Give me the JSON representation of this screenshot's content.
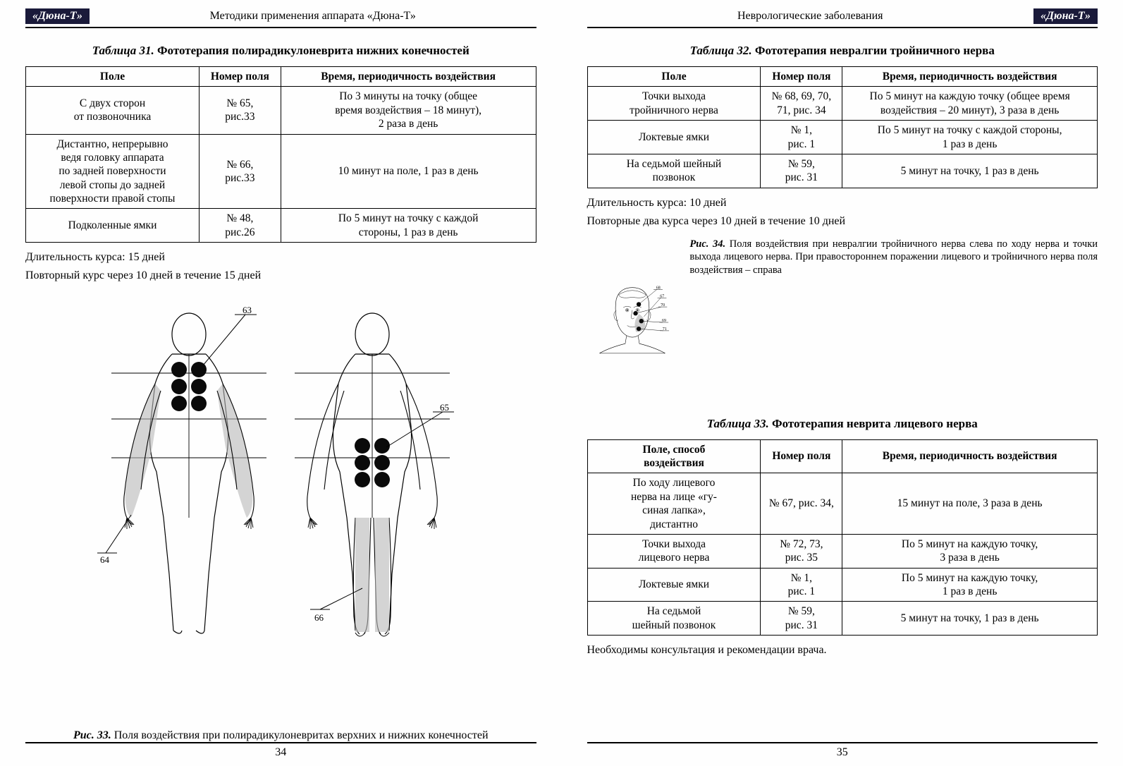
{
  "brand": "«Дюна-Т»",
  "leftPage": {
    "headerText": "Методики применения аппарата «Дюна-Т»",
    "pageNumber": "34",
    "table31": {
      "tno": "Таблица 31.",
      "tname": "Фототерапия полирадикулоневрита нижних конечностей",
      "headers": {
        "c1": "Поле",
        "c2": "Номер поля",
        "c3": "Время, периодичность воздействия"
      },
      "rows": [
        {
          "c1": "С двух сторон\nот позвоночника",
          "c2": "№ 65,\nрис.33",
          "c3": "По 3 минуты на точку (общее\nвремя воздействия – 18 минут),\n2 раза в день"
        },
        {
          "c1": "Дистантно, непрерывно\nведя головку аппарата\nпо задней поверхности\nлевой стопы до задней\nповерхности правой стопы",
          "c2": "№ 66,\nрис.33",
          "c3": "10 минут на поле, 1 раз в день"
        },
        {
          "c1": "Подколенные ямки",
          "c2": "№ 48,\nрис.26",
          "c3": "По 5 минут на точку с каждой\nстороны, 1 раз в день"
        }
      ]
    },
    "notes": [
      "Длительность курса: 15 дней",
      "Повторный курс через 10 дней в течение 15 дней"
    ],
    "fig33": {
      "captionNo": "Рис. 33.",
      "captionText": "Поля воздействия при полирадикулоневритах верхних и нижних конечностей",
      "callouts": {
        "tl": "63",
        "bl": "64",
        "tr": "65",
        "br": "66"
      },
      "dotColor": "#0a0a0a",
      "shadeColor": "#b8b8b8",
      "lineColor": "#000000"
    }
  },
  "rightPage": {
    "headerText": "Неврологические заболевания",
    "pageNumber": "35",
    "table32": {
      "tno": "Таблица 32.",
      "tname": "Фототерапия невралгии тройничного нерва",
      "headers": {
        "c1": "Поле",
        "c2": "Номер поля",
        "c3": "Время, периодичность воздействия"
      },
      "rows": [
        {
          "c1": "Точки выхода\nтройничного нерва",
          "c2": "№ 68, 69, 70,\n71, рис. 34",
          "c3": "По 5 минут на каждую точку (общее время\nвоздействия – 20 минут), 3 раза в день"
        },
        {
          "c1": "Локтевые ямки",
          "c2": "№ 1,\nрис. 1",
          "c3": "По 5 минут на точку с каждой стороны,\n1 раз в день"
        },
        {
          "c1": "На седьмой шейный\nпозвонок",
          "c2": "№ 59,\nрис. 31",
          "c3": "5 минут на точку, 1 раз в день"
        }
      ]
    },
    "notes32": [
      "Длительность курса: 10 дней",
      "Повторные два курса через 10 дней в течение 10 дней"
    ],
    "fig34": {
      "captionNo": "Рис. 34.",
      "captionText": "Поля воздействия при невралгии тройничного нерва слева по ходу нерва и точки выхода лицевого нерва. При правостороннем поражении лицевого и тройничного нерва поля воздействия – справа",
      "callouts": {
        "a": "68",
        "b": "67",
        "c": "70",
        "d": "69",
        "e": "71"
      },
      "dotColor": "#0a0a0a",
      "shadeColor": "#b8b8b8",
      "lineColor": "#000000"
    },
    "table33": {
      "tno": "Таблица 33.",
      "tname": "Фототерапия неврита лицевого нерва",
      "headers": {
        "c1": "Поле, способ\nвоздействия",
        "c2": "Номер поля",
        "c3": "Время, периодичность воздействия"
      },
      "rows": [
        {
          "c1": "По ходу лицевого\nнерва на лице «гу-\nсиная лапка»,\nдистантно",
          "c2": "№ 67, рис. 34,",
          "c3": "15 минут на поле, 3 раза в день"
        },
        {
          "c1": "Точки выхода\nлицевого нерва",
          "c2": "№ 72, 73,\nрис. 35",
          "c3": "По 5 минут на каждую точку,\n3 раза в день"
        },
        {
          "c1": "Локтевые ямки",
          "c2": "№ 1,\nрис. 1",
          "c3": "По 5 минут на каждую точку,\n1 раз в день"
        },
        {
          "c1": "На седьмой\nшейный позвонок",
          "c2": "№ 59,\nрис. 31",
          "c3": "5 минут на точку, 1 раз в день"
        }
      ]
    },
    "footnote": "Необходимы консультация и рекомендации врача."
  }
}
